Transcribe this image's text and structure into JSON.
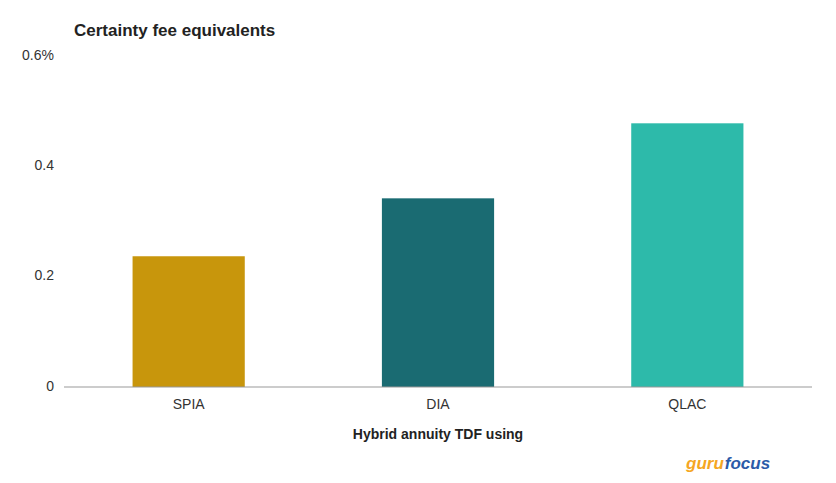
{
  "chart_data": {
    "type": "bar",
    "title": "Certainty fee equivalents",
    "xlabel": "Hybrid annuity TDF using",
    "categories": [
      "SPIA",
      "DIA",
      "QLAC"
    ],
    "values": [
      0.237,
      0.342,
      0.478
    ],
    "colors": [
      "#C8960C",
      "#1A6B72",
      "#2DBAAA"
    ],
    "ylim": [
      0,
      0.6
    ],
    "yticks": [
      0,
      0.2,
      0.4,
      {
        "value": 0.6,
        "label": "0.6%"
      }
    ],
    "grid": false,
    "annotations": [
      {
        "text": "guru",
        "color": "#F5A623"
      },
      {
        "text": "focus",
        "color": "#2B5BA8"
      }
    ]
  }
}
